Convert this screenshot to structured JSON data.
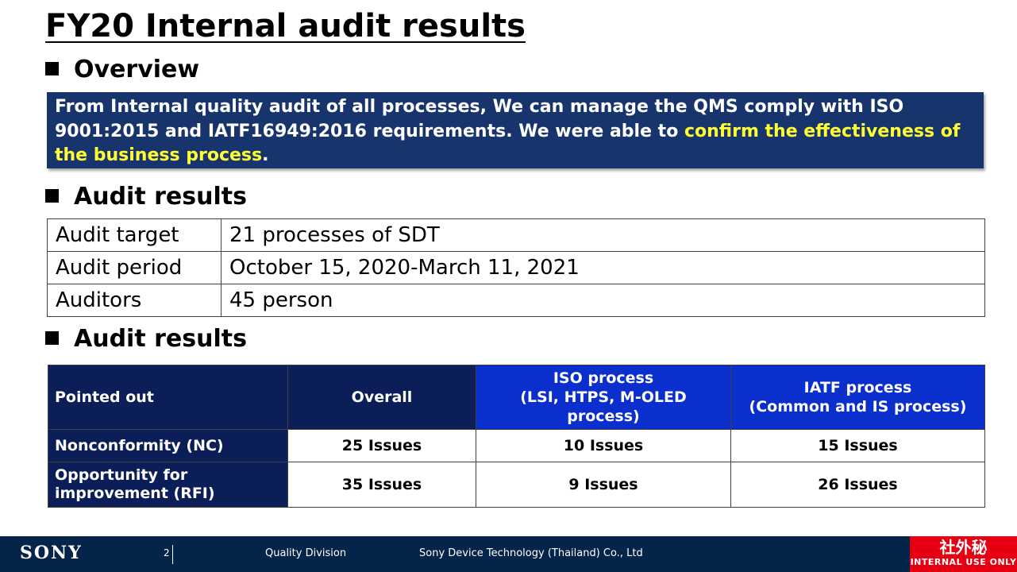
{
  "title": "FY20 Internal audit results",
  "sections": {
    "overview": "Overview",
    "audit_results_1": "Audit results",
    "audit_results_2": "Audit results"
  },
  "overview": {
    "text_normal": "From Internal quality audit of all processes, We can manage the QMS comply with ISO 9001:2015 and IATF16949:2016 requirements. We were able to ",
    "text_highlight": "confirm the effectiveness of the business process",
    "text_end": "."
  },
  "info_table": [
    {
      "label": "Audit target",
      "value": "21 processes of SDT"
    },
    {
      "label": "Audit period",
      "value": "October 15, 2020-March 11, 2021"
    },
    {
      "label": "Auditors",
      "value": "45 person"
    }
  ],
  "results_table": {
    "headers": [
      "Pointed out",
      "Overall",
      "ISO process\n(LSI, HTPS, M-OLED process)",
      "IATF process\n(Common and IS process)"
    ],
    "rows": [
      {
        "label": "Nonconformity (NC)",
        "overall": "25 Issues",
        "iso": "10 Issues",
        "iatf": "15 Issues"
      },
      {
        "label": "Opportunity for improvement (RFI)",
        "overall": "35 Issues",
        "iso": "9 Issues",
        "iatf": "26 Issues"
      }
    ]
  },
  "footer": {
    "logo": "SONY",
    "page": "2",
    "division": "Quality Division",
    "company": "Sony Device Technology (Thailand) Co., Ltd",
    "badge_jp": "社外秘",
    "badge_en": "INTERNAL USE ONLY"
  },
  "colors": {
    "overview_bg": "#17346d",
    "highlight": "#ffff33",
    "header_navy": "#0b1e58",
    "header_blue": "#0b2fcc",
    "footer_bg": "#052449",
    "badge_red": "#e60012"
  }
}
